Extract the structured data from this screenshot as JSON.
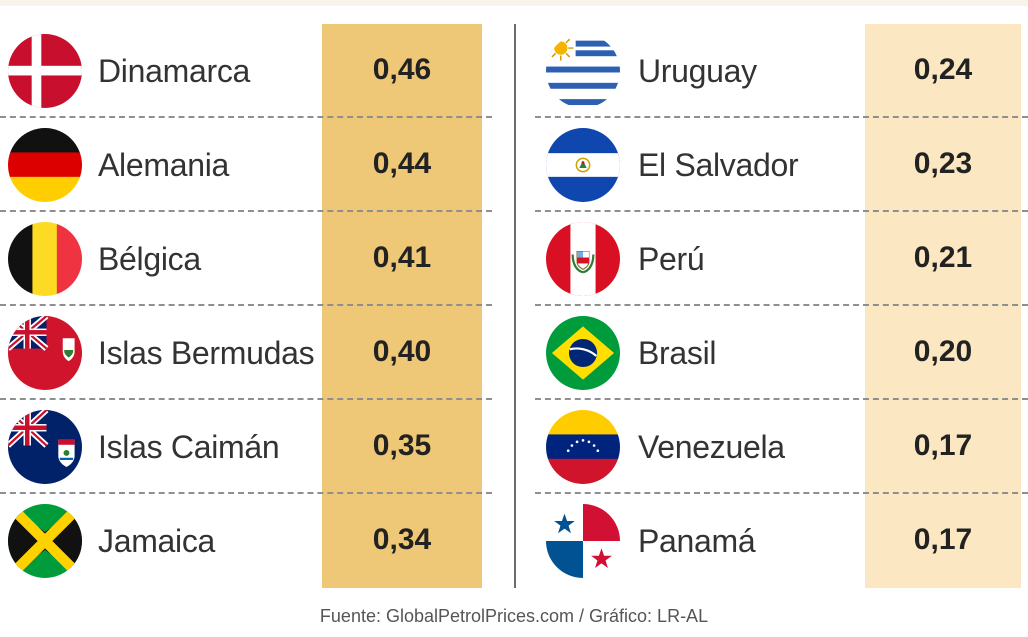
{
  "chart_data": {
    "type": "table",
    "left": [
      {
        "country": "Dinamarca",
        "value": "0,46",
        "flag": "denmark-flag-icon"
      },
      {
        "country": "Alemania",
        "value": "0,44",
        "flag": "germany-flag-icon"
      },
      {
        "country": "Bélgica",
        "value": "0,41",
        "flag": "belgium-flag-icon"
      },
      {
        "country": "Islas Bermudas",
        "value": "0,40",
        "flag": "bermuda-flag-icon"
      },
      {
        "country": "Islas Caimán",
        "value": "0,35",
        "flag": "cayman-islands-flag-icon"
      },
      {
        "country": "Jamaica",
        "value": "0,34",
        "flag": "jamaica-flag-icon"
      }
    ],
    "right": [
      {
        "country": "Uruguay",
        "value": "0,24",
        "flag": "uruguay-flag-icon"
      },
      {
        "country": "El Salvador",
        "value": "0,23",
        "flag": "el-salvador-flag-icon"
      },
      {
        "country": "Perú",
        "value": "0,21",
        "flag": "peru-flag-icon"
      },
      {
        "country": "Brasil",
        "value": "0,20",
        "flag": "brazil-flag-icon"
      },
      {
        "country": "Venezuela",
        "value": "0,17",
        "flag": "venezuela-flag-icon"
      },
      {
        "country": "Panamá",
        "value": "0,17",
        "flag": "panama-flag-icon"
      }
    ],
    "colors": {
      "left_band": "#eec877",
      "right_band": "#fbe8c2"
    }
  },
  "source": "Fuente: GlobalPetrolPrices.com / Gráfico: LR-AL"
}
